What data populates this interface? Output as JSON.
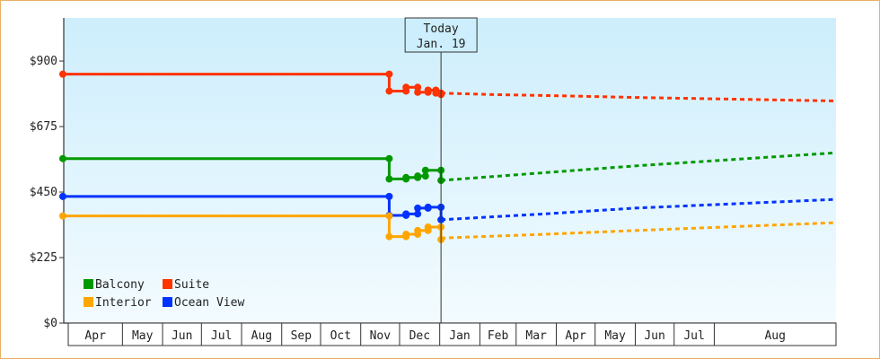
{
  "chart_data": {
    "type": "line",
    "title": "",
    "xlabel": "",
    "ylabel": "",
    "ylim": [
      0,
      1050
    ],
    "yticks": [
      0,
      225,
      450,
      675,
      900
    ],
    "ytick_labels": [
      "$0",
      "$225",
      "$450",
      "$675",
      "$900"
    ],
    "grid": false,
    "background": "light-blue-gradient",
    "xlim_days": [
      -292,
      305
    ],
    "months": [
      {
        "label": "Apr",
        "day": -276
      },
      {
        "label": "May",
        "day": -246
      },
      {
        "label": "Jun",
        "day": -215
      },
      {
        "label": "Jul",
        "day": -185
      },
      {
        "label": "Aug",
        "day": -154
      },
      {
        "label": "Sep",
        "day": -123
      },
      {
        "label": "Oct",
        "day": -93
      },
      {
        "label": "Nov",
        "day": -62
      },
      {
        "label": "Dec",
        "day": -32
      },
      {
        "label": "Jan",
        "day": -1
      },
      {
        "label": "Feb",
        "day": 30
      },
      {
        "label": "Mar",
        "day": 58
      },
      {
        "label": "Apr",
        "day": 89
      },
      {
        "label": "May",
        "day": 119
      },
      {
        "label": "Jun",
        "day": 150
      },
      {
        "label": "Jul",
        "day": 180
      },
      {
        "label": "Aug",
        "day": 211
      }
    ],
    "today": {
      "line1": "Today",
      "line2": "Jan. 19",
      "day": 0
    },
    "legend": {
      "position": "bottom-left",
      "items": [
        {
          "name": "Balcony",
          "color": "#009900"
        },
        {
          "name": "Suite",
          "color": "#ff3300"
        },
        {
          "name": "Interior",
          "color": "#ffa500"
        },
        {
          "name": "Ocean View",
          "color": "#0033ff"
        }
      ]
    },
    "series": [
      {
        "name": "Suite",
        "color": "#ff3300",
        "history": [
          [
            -292,
            855
          ],
          [
            -40,
            855
          ],
          [
            -40,
            797
          ],
          [
            -27,
            797
          ],
          [
            -27,
            810
          ],
          [
            -18,
            810
          ],
          [
            -18,
            793
          ],
          [
            -10,
            793
          ],
          [
            -10,
            800
          ],
          [
            -4,
            800
          ],
          [
            -4,
            790
          ],
          [
            0,
            790
          ],
          [
            0,
            785
          ]
        ],
        "forecast": [
          [
            0,
            790
          ],
          [
            40,
            785
          ],
          [
            100,
            780
          ],
          [
            150,
            775
          ],
          [
            305,
            763
          ]
        ]
      },
      {
        "name": "Balcony",
        "color": "#009900",
        "history": [
          [
            -292,
            565
          ],
          [
            -40,
            565
          ],
          [
            -40,
            495
          ],
          [
            -27,
            495
          ],
          [
            -27,
            500
          ],
          [
            -18,
            500
          ],
          [
            -18,
            505
          ],
          [
            -12,
            505
          ],
          [
            -12,
            525
          ],
          [
            0,
            525
          ],
          [
            0,
            490
          ]
        ],
        "forecast": [
          [
            0,
            490
          ],
          [
            75,
            515
          ],
          [
            150,
            540
          ],
          [
            305,
            585
          ]
        ]
      },
      {
        "name": "Ocean View",
        "color": "#0033ff",
        "history": [
          [
            -292,
            435
          ],
          [
            -40,
            435
          ],
          [
            -40,
            370
          ],
          [
            -27,
            370
          ],
          [
            -27,
            375
          ],
          [
            -18,
            375
          ],
          [
            -18,
            395
          ],
          [
            -10,
            395
          ],
          [
            -10,
            398
          ],
          [
            0,
            398
          ],
          [
            0,
            355
          ]
        ],
        "forecast": [
          [
            0,
            355
          ],
          [
            80,
            375
          ],
          [
            150,
            395
          ],
          [
            305,
            425
          ]
        ]
      },
      {
        "name": "Interior",
        "color": "#ffa500",
        "history": [
          [
            -292,
            368
          ],
          [
            -40,
            368
          ],
          [
            -40,
            297
          ],
          [
            -27,
            297
          ],
          [
            -27,
            305
          ],
          [
            -18,
            305
          ],
          [
            -18,
            318
          ],
          [
            -10,
            318
          ],
          [
            -10,
            330
          ],
          [
            0,
            330
          ],
          [
            0,
            287
          ]
        ],
        "forecast": [
          [
            0,
            292
          ],
          [
            80,
            305
          ],
          [
            150,
            318
          ],
          [
            305,
            345
          ]
        ]
      }
    ]
  }
}
